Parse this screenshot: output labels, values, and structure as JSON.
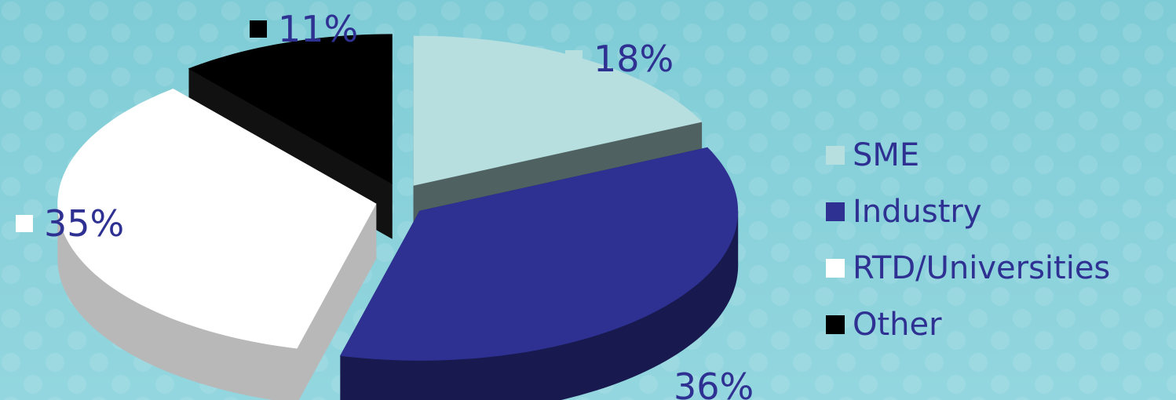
{
  "chart_data": {
    "type": "pie",
    "style": "3d-exploded",
    "categories": [
      "SME",
      "Industry",
      "RTD/Universities",
      "Other"
    ],
    "values": [
      18,
      36,
      35,
      11
    ],
    "value_labels": [
      "18%",
      "36%",
      "35%",
      "11%"
    ],
    "colors": [
      "#b7dfe0",
      "#2e3192",
      "#ffffff",
      "#000000"
    ],
    "side_colors": [
      "#506162",
      "#181a4f",
      "#b8b8b8",
      "#111111"
    ],
    "label_color": "#2e3192",
    "legend_position": "right"
  }
}
